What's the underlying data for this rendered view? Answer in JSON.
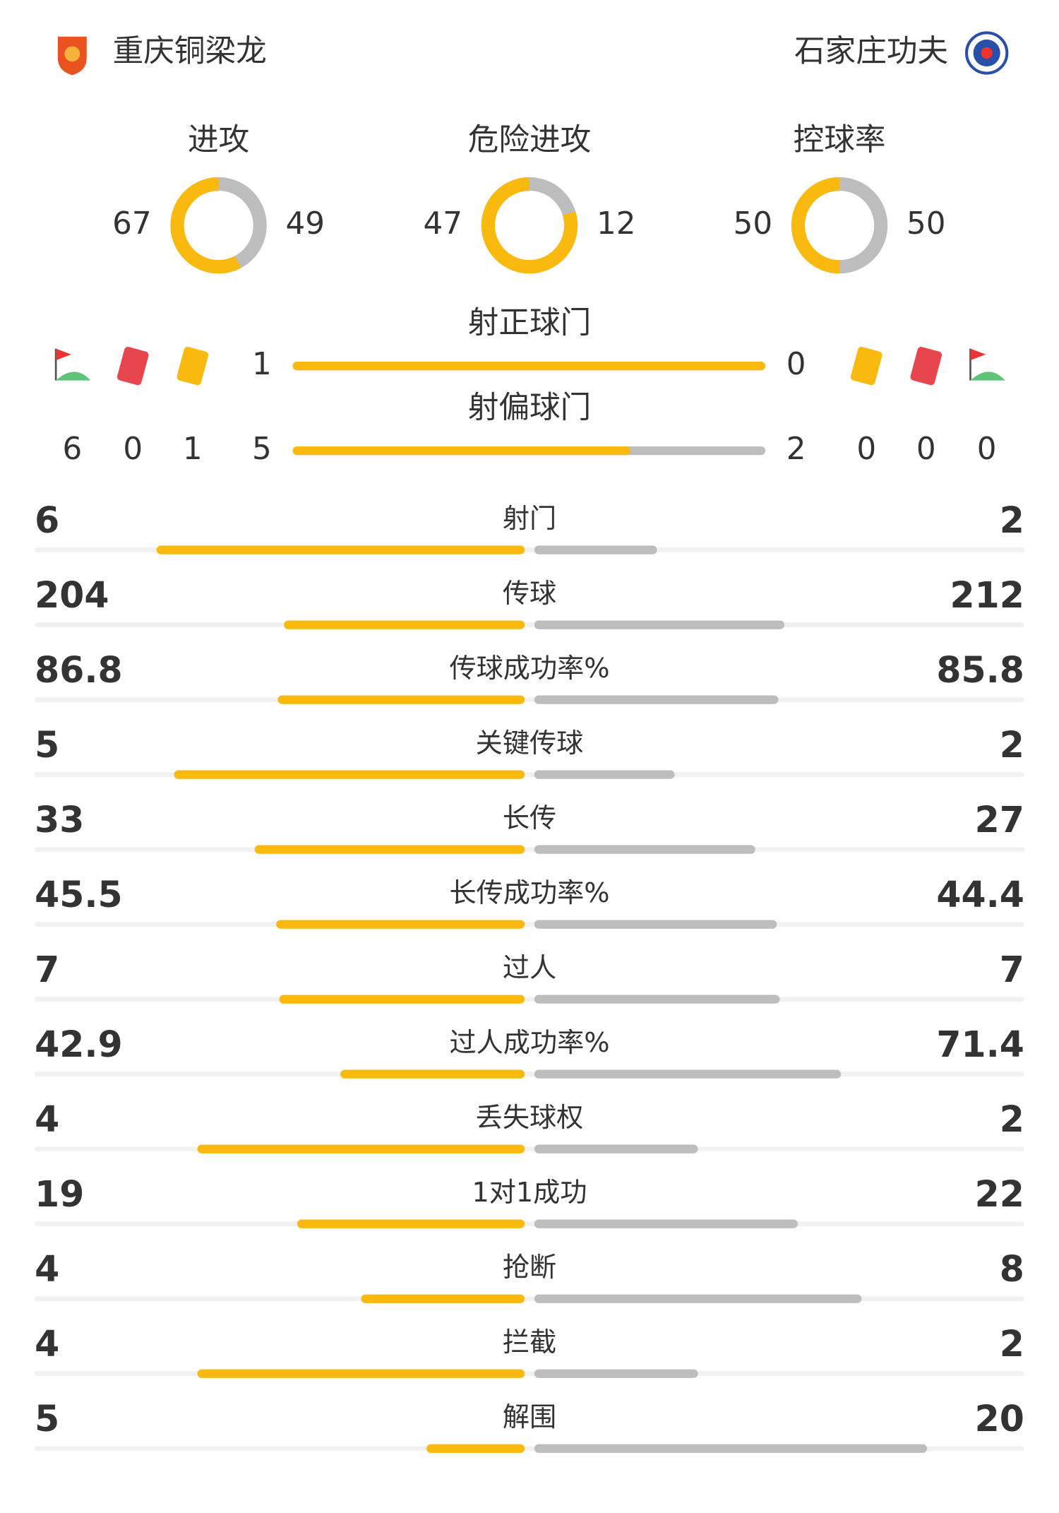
{
  "home": {
    "name": "重庆铜梁龙"
  },
  "away": {
    "name": "石家庄功夫"
  },
  "rings": [
    {
      "label": "进攻",
      "home": 67,
      "away": 49
    },
    {
      "label": "危险进攻",
      "home": 47,
      "away": 12
    },
    {
      "label": "控球率",
      "home": 50,
      "away": 50
    }
  ],
  "shot_bars": [
    {
      "label": "射正球门",
      "home": 1,
      "away": 0
    },
    {
      "label": "射偏球门",
      "home": 5,
      "away": 2
    }
  ],
  "events": {
    "home": {
      "corners": 6,
      "red_cards": 0,
      "yellow_cards": 1
    },
    "away": {
      "yellow_cards": 0,
      "red_cards": 0,
      "corners": 0
    }
  },
  "stats": [
    {
      "label": "射门",
      "home": 6,
      "away": 2
    },
    {
      "label": "传球",
      "home": 204,
      "away": 212
    },
    {
      "label": "传球成功率%",
      "home": 86.8,
      "away": 85.8
    },
    {
      "label": "关键传球",
      "home": 5,
      "away": 2
    },
    {
      "label": "长传",
      "home": 33,
      "away": 27
    },
    {
      "label": "长传成功率%",
      "home": 45.5,
      "away": 44.4
    },
    {
      "label": "过人",
      "home": 7,
      "away": 7
    },
    {
      "label": "过人成功率%",
      "home": 42.9,
      "away": 71.4
    },
    {
      "label": "丢失球权",
      "home": 4,
      "away": 2
    },
    {
      "label": "1对1成功",
      "home": 19,
      "away": 22
    },
    {
      "label": "抢断",
      "home": 4,
      "away": 8
    },
    {
      "label": "拦截",
      "home": 4,
      "away": 2
    },
    {
      "label": "解围",
      "home": 5,
      "away": 20
    }
  ]
}
